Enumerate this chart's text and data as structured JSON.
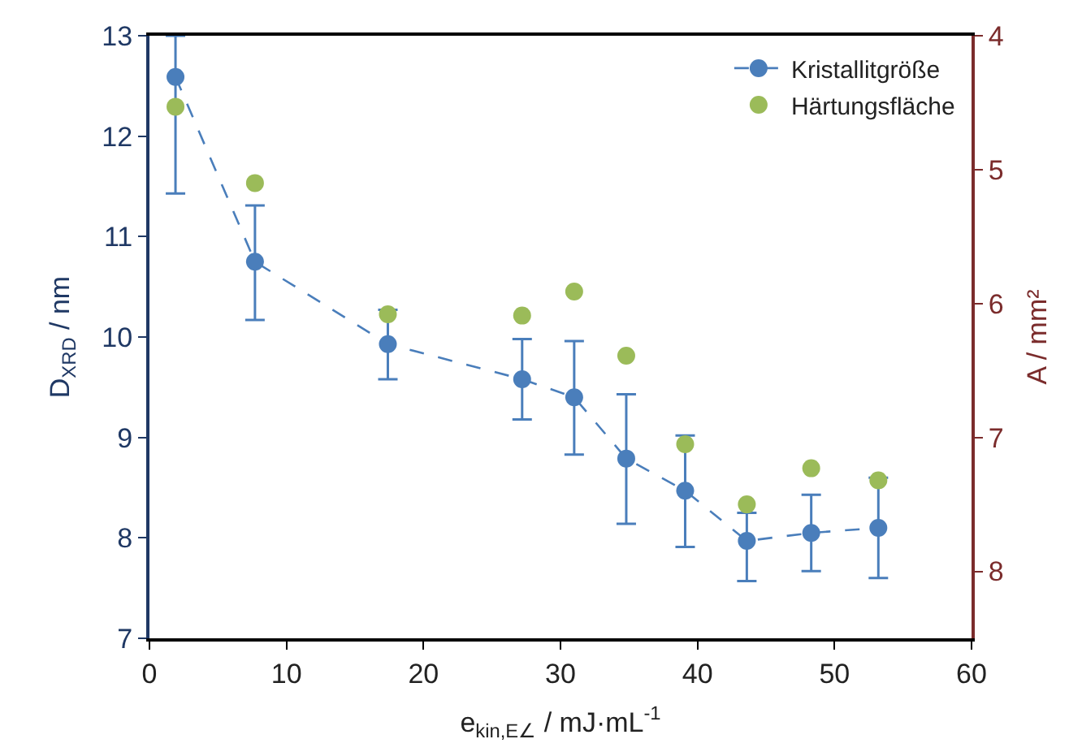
{
  "chart_data": {
    "type": "line",
    "xlabel": "e$_{kin,E∠}$ / mJ·mL$^{-1}$",
    "ylabel": "D$_{XRD}$ / nm",
    "y2label": "A / mm²",
    "xlim": [
      0,
      60
    ],
    "xticks": [
      0,
      10,
      20,
      30,
      40,
      50,
      60
    ],
    "ylim": [
      7,
      13
    ],
    "yticks": [
      7,
      8,
      9,
      10,
      11,
      12,
      13
    ],
    "y2lim": [
      8.5,
      4
    ],
    "y2ticks": [
      4,
      5,
      6,
      7,
      8
    ],
    "legend": "top right",
    "marker": "circle",
    "series": [
      {
        "name": "Kristallitgröße",
        "line_style": "dashed",
        "color": "#4a7ebb",
        "x": [
          1.9,
          7.7,
          17.4,
          27.2,
          31.0,
          34.8,
          39.1,
          43.6,
          48.3,
          53.2
        ],
        "values": [
          12.59,
          10.75,
          9.93,
          9.58,
          9.4,
          8.79,
          8.47,
          7.97,
          8.05,
          8.1
        ],
        "errors": [
          [
            11.43,
            13
          ],
          [
            10.17,
            11.31
          ],
          [
            9.58,
            10.27
          ],
          [
            9.18,
            9.98
          ],
          [
            8.83,
            9.96
          ],
          [
            8.14,
            9.43
          ],
          [
            7.91,
            9.02
          ],
          [
            7.57,
            8.25
          ],
          [
            7.67,
            8.43
          ],
          [
            7.6,
            8.6
          ]
        ]
      },
      {
        "name": "Härtungsfläche",
        "type": "scatter",
        "axis": "y2",
        "color": "#9bbb59",
        "x": [
          1.9,
          7.7,
          17.4,
          27.2,
          31.0,
          34.8,
          39.1,
          43.6,
          48.3,
          53.2
        ],
        "values": [
          4.53,
          5.1,
          6.08,
          6.09,
          5.91,
          6.39,
          7.05,
          7.5,
          7.23,
          7.32
        ]
      }
    ]
  }
}
